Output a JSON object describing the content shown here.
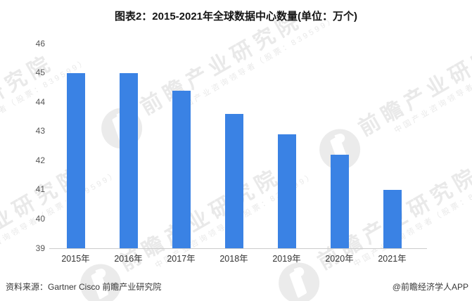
{
  "title": "图表2：2015-2021年全球数据中心数量(单位：万个)",
  "chart_data": {
    "type": "bar",
    "title": "图表2：2015-2021年全球数据中心数量(单位：万个)",
    "categories": [
      "2015年",
      "2016年",
      "2017年",
      "2018年",
      "2019年",
      "2020年",
      "2021年"
    ],
    "values": [
      45.0,
      45.0,
      44.4,
      43.6,
      42.9,
      42.2,
      41.0
    ],
    "xlabel": "",
    "ylabel": "",
    "ylim": [
      39,
      46
    ],
    "yticks": [
      39,
      40,
      41,
      42,
      43,
      44,
      45,
      46
    ],
    "grid": false,
    "legend": "none",
    "bar_color": "#3a82e4"
  },
  "watermark": {
    "main": "前瞻产业研究院",
    "sub": "中国产业咨询领导者（股票：839599）"
  },
  "footer": {
    "source": "资料来源：Gartner Cisco 前瞻产业研究院",
    "credit": "@前瞻经济学人APP"
  },
  "colors": {
    "bar": "#3a82e4",
    "axis_line": "#cccccc",
    "y_tick_label": "#555555",
    "x_tick_label": "#333333",
    "watermark": "#e9e9e9"
  }
}
